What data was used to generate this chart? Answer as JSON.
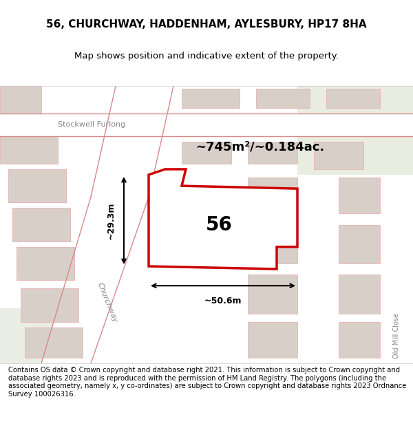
{
  "title_line1": "56, CHURCHWAY, HADDENHAM, AYLESBURY, HP17 8HA",
  "title_line2": "Map shows position and indicative extent of the property.",
  "footer_text": "Contains OS data © Crown copyright and database right 2021. This information is subject to Crown copyright and database rights 2023 and is reproduced with the permission of HM Land Registry. The polygons (including the associated geometry, namely x, y co-ordinates) are subject to Crown copyright and database rights 2023 Ordnance Survey 100026316.",
  "area_label": "~745m²/~0.184ac.",
  "number_label": "56",
  "width_label": "~50.6m",
  "height_label": "~29.3m",
  "bg_color": "#f5f0eb",
  "map_bg": "#f5f0eb",
  "road_color": "#ffffff",
  "road_outline_color": "#e8c8c8",
  "building_color": "#d8d0c8",
  "green_area_color": "#e8eee0",
  "plot_fill": "#ffffff",
  "plot_edge_color": "#cc0000",
  "title_bg": "#ffffff",
  "footer_bg": "#ffffff",
  "map_area": [
    0.0,
    0.08,
    1.0,
    0.78
  ],
  "road_line_color": "#d88888",
  "street_label_churchway": "Churchway",
  "street_label_stockwell": "Stockwell Furlong",
  "street_label_oldmill": "Old Mill Close"
}
